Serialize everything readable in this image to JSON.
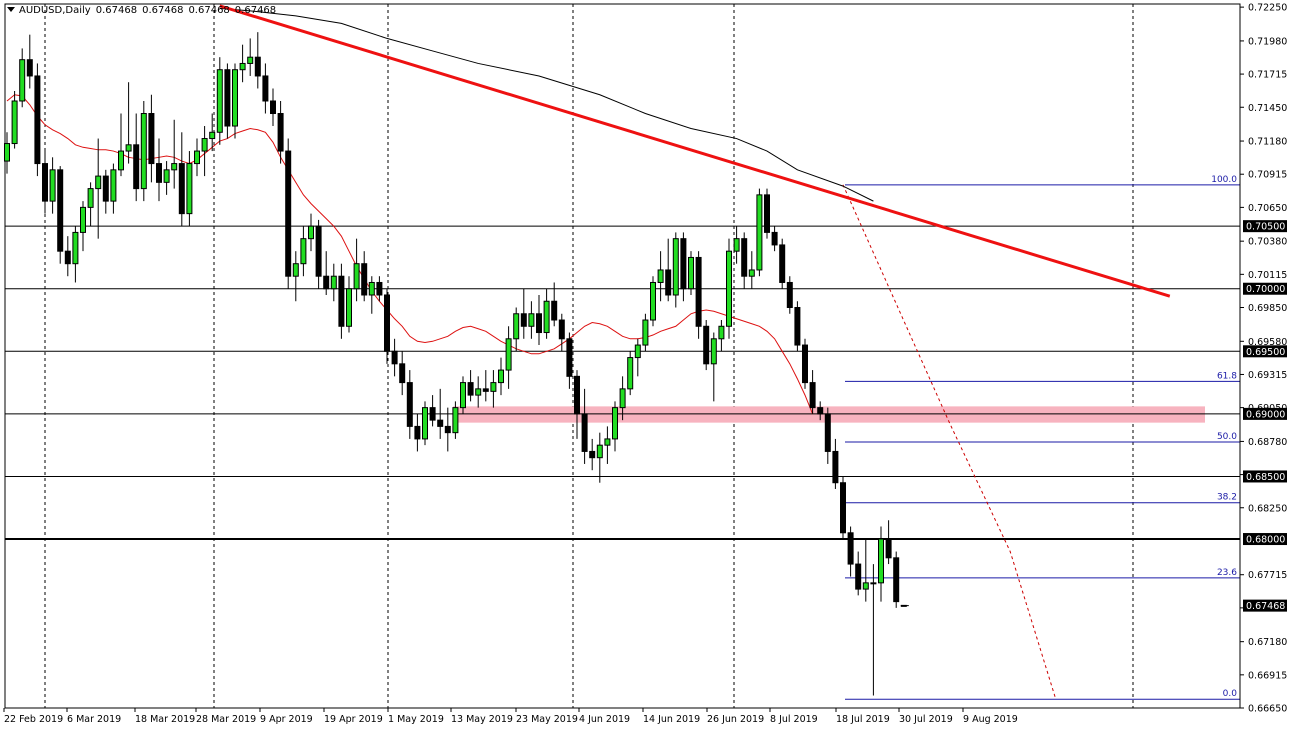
{
  "header": {
    "symbol": "AUDUSD,Daily",
    "ohlc": [
      "0.67468",
      "0.67468",
      "0.67468",
      "0.67468"
    ]
  },
  "chart_data": {
    "type": "candlestick",
    "symbol": "AUDUSD",
    "timeframe": "Daily",
    "ylim": [
      0.6665,
      0.72275
    ],
    "y_ticks": [
      "0.72250",
      "0.71980",
      "0.71715",
      "0.71450",
      "0.71180",
      "0.70915",
      "0.70650",
      "0.70380",
      "0.70115",
      "0.69850",
      "0.69580",
      "0.69315",
      "0.69050",
      "0.68780",
      "0.68515",
      "0.68250",
      "0.67715",
      "0.67450",
      "0.67180",
      "0.66915",
      "0.66650"
    ],
    "x_labels": [
      "22 Feb 2019",
      "6 Mar 2019",
      "18 Mar 2019",
      "28 Mar 2019",
      "9 Apr 2019",
      "19 Apr 2019",
      "1 May 2019",
      "13 May 2019",
      "23 May 2019",
      "4 Jun 2019",
      "14 Jun 2019",
      "26 Jun 2019",
      "8 Jul 2019",
      "18 Jul 2019",
      "30 Jul 2019",
      "9 Aug 2019"
    ],
    "candles": [
      [
        0.7102,
        0.7125,
        0.7092,
        0.7116
      ],
      [
        0.7116,
        0.7158,
        0.7112,
        0.715
      ],
      [
        0.715,
        0.7192,
        0.7145,
        0.7183
      ],
      [
        0.7183,
        0.7203,
        0.716,
        0.717
      ],
      [
        0.717,
        0.718,
        0.709,
        0.71
      ],
      [
        0.71,
        0.711,
        0.706,
        0.707
      ],
      [
        0.707,
        0.7105,
        0.706,
        0.7095
      ],
      [
        0.7095,
        0.7098,
        0.702,
        0.703
      ],
      [
        0.703,
        0.7042,
        0.701,
        0.702
      ],
      [
        0.702,
        0.705,
        0.7005,
        0.7045
      ],
      [
        0.7045,
        0.707,
        0.703,
        0.7065
      ],
      [
        0.7065,
        0.7085,
        0.705,
        0.708
      ],
      [
        0.708,
        0.712,
        0.704,
        0.709
      ],
      [
        0.709,
        0.7095,
        0.706,
        0.707
      ],
      [
        0.707,
        0.71,
        0.706,
        0.7095
      ],
      [
        0.7095,
        0.714,
        0.709,
        0.711
      ],
      [
        0.711,
        0.7165,
        0.71,
        0.7115
      ],
      [
        0.7115,
        0.714,
        0.707,
        0.708
      ],
      [
        0.708,
        0.715,
        0.707,
        0.714
      ],
      [
        0.714,
        0.7155,
        0.7085,
        0.71
      ],
      [
        0.71,
        0.712,
        0.707,
        0.7085
      ],
      [
        0.7085,
        0.7102,
        0.7075,
        0.7095
      ],
      [
        0.7095,
        0.7135,
        0.708,
        0.71
      ],
      [
        0.71,
        0.7125,
        0.705,
        0.706
      ],
      [
        0.706,
        0.711,
        0.705,
        0.71
      ],
      [
        0.71,
        0.712,
        0.709,
        0.711
      ],
      [
        0.711,
        0.713,
        0.709,
        0.712
      ],
      [
        0.712,
        0.714,
        0.711,
        0.7125
      ],
      [
        0.7125,
        0.7185,
        0.7115,
        0.7175
      ],
      [
        0.7175,
        0.718,
        0.712,
        0.713
      ],
      [
        0.713,
        0.718,
        0.712,
        0.7175
      ],
      [
        0.7175,
        0.7195,
        0.7165,
        0.718
      ],
      [
        0.718,
        0.72,
        0.717,
        0.7185
      ],
      [
        0.7185,
        0.7205,
        0.716,
        0.717
      ],
      [
        0.717,
        0.718,
        0.714,
        0.715
      ],
      [
        0.715,
        0.716,
        0.713,
        0.714
      ],
      [
        0.714,
        0.715,
        0.71,
        0.711
      ],
      [
        0.711,
        0.712,
        0.7,
        0.701
      ],
      [
        0.701,
        0.703,
        0.699,
        0.702
      ],
      [
        0.702,
        0.705,
        0.701,
        0.704
      ],
      [
        0.704,
        0.706,
        0.703,
        0.705
      ],
      [
        0.705,
        0.7055,
        0.7,
        0.701
      ],
      [
        0.701,
        0.703,
        0.6995,
        0.7
      ],
      [
        0.7,
        0.702,
        0.699,
        0.701
      ],
      [
        0.701,
        0.702,
        0.696,
        0.697
      ],
      [
        0.697,
        0.701,
        0.6965,
        0.7
      ],
      [
        0.7,
        0.704,
        0.699,
        0.702
      ],
      [
        0.702,
        0.703,
        0.699,
        0.6995
      ],
      [
        0.6995,
        0.701,
        0.698,
        0.7005
      ],
      [
        0.7005,
        0.701,
        0.699,
        0.6995
      ],
      [
        0.6995,
        0.7,
        0.694,
        0.695
      ],
      [
        0.695,
        0.696,
        0.693,
        0.694
      ],
      [
        0.694,
        0.695,
        0.6915,
        0.6925
      ],
      [
        0.6925,
        0.6935,
        0.688,
        0.689
      ],
      [
        0.689,
        0.69,
        0.687,
        0.688
      ],
      [
        0.688,
        0.691,
        0.6875,
        0.6905
      ],
      [
        0.6905,
        0.6915,
        0.689,
        0.6895
      ],
      [
        0.6895,
        0.692,
        0.688,
        0.689
      ],
      [
        0.689,
        0.6905,
        0.687,
        0.6885
      ],
      [
        0.6885,
        0.691,
        0.688,
        0.6905
      ],
      [
        0.6905,
        0.693,
        0.69,
        0.6925
      ],
      [
        0.6925,
        0.6935,
        0.691,
        0.6915
      ],
      [
        0.6915,
        0.693,
        0.6905,
        0.692
      ],
      [
        0.692,
        0.6935,
        0.691,
        0.6918
      ],
      [
        0.6918,
        0.6935,
        0.6905,
        0.6925
      ],
      [
        0.6925,
        0.6945,
        0.6915,
        0.6935
      ],
      [
        0.6935,
        0.697,
        0.692,
        0.696
      ],
      [
        0.696,
        0.6985,
        0.695,
        0.698
      ],
      [
        0.698,
        0.7,
        0.696,
        0.697
      ],
      [
        0.697,
        0.699,
        0.696,
        0.698
      ],
      [
        0.698,
        0.6995,
        0.6955,
        0.6965
      ],
      [
        0.6965,
        0.7,
        0.696,
        0.699
      ],
      [
        0.699,
        0.7005,
        0.697,
        0.6975
      ],
      [
        0.6975,
        0.698,
        0.695,
        0.696
      ],
      [
        0.696,
        0.6965,
        0.692,
        0.693
      ],
      [
        0.693,
        0.6935,
        0.688,
        0.69
      ],
      [
        0.69,
        0.692,
        0.686,
        0.687
      ],
      [
        0.687,
        0.688,
        0.6855,
        0.6865
      ],
      [
        0.6865,
        0.6885,
        0.6845,
        0.6875
      ],
      [
        0.6875,
        0.689,
        0.686,
        0.688
      ],
      [
        0.688,
        0.691,
        0.687,
        0.6905
      ],
      [
        0.6905,
        0.693,
        0.6895,
        0.692
      ],
      [
        0.692,
        0.695,
        0.6915,
        0.6945
      ],
      [
        0.6945,
        0.696,
        0.693,
        0.6955
      ],
      [
        0.6955,
        0.698,
        0.695,
        0.6975
      ],
      [
        0.6975,
        0.701,
        0.697,
        0.7005
      ],
      [
        0.7005,
        0.703,
        0.699,
        0.7015
      ],
      [
        0.7015,
        0.704,
        0.699,
        0.6995
      ],
      [
        0.6995,
        0.7045,
        0.6985,
        0.704
      ],
      [
        0.704,
        0.7045,
        0.699,
        0.7
      ],
      [
        0.7,
        0.703,
        0.6995,
        0.7025
      ],
      [
        0.7025,
        0.703,
        0.696,
        0.697
      ],
      [
        0.697,
        0.6975,
        0.6935,
        0.694
      ],
      [
        0.694,
        0.6965,
        0.691,
        0.696
      ],
      [
        0.696,
        0.6975,
        0.695,
        0.697
      ],
      [
        0.697,
        0.704,
        0.696,
        0.703
      ],
      [
        0.703,
        0.705,
        0.702,
        0.704
      ],
      [
        0.704,
        0.7045,
        0.7,
        0.701
      ],
      [
        0.701,
        0.703,
        0.7,
        0.7015
      ],
      [
        0.7015,
        0.708,
        0.701,
        0.7075
      ],
      [
        0.7075,
        0.708,
        0.704,
        0.7045
      ],
      [
        0.7045,
        0.705,
        0.703,
        0.7035
      ],
      [
        0.7035,
        0.704,
        0.7,
        0.7005
      ],
      [
        0.7005,
        0.701,
        0.698,
        0.6985
      ],
      [
        0.6985,
        0.699,
        0.695,
        0.6955
      ],
      [
        0.6955,
        0.696,
        0.692,
        0.6925
      ],
      [
        0.6925,
        0.6935,
        0.69,
        0.6905
      ],
      [
        0.6905,
        0.691,
        0.6895,
        0.69
      ],
      [
        0.69,
        0.6905,
        0.686,
        0.687
      ],
      [
        0.687,
        0.688,
        0.684,
        0.6845
      ],
      [
        0.6845,
        0.685,
        0.68,
        0.6805
      ],
      [
        0.6805,
        0.681,
        0.677,
        0.678
      ],
      [
        0.678,
        0.679,
        0.6755,
        0.676
      ],
      [
        0.676,
        0.68,
        0.675,
        0.6765
      ],
      [
        0.6765,
        0.678,
        0.6675,
        0.6765
      ],
      [
        0.6765,
        0.681,
        0.675,
        0.68
      ],
      [
        0.68,
        0.6815,
        0.678,
        0.6785
      ],
      [
        0.6785,
        0.679,
        0.6745,
        0.675
      ],
      [
        0.6747,
        0.6747,
        0.6747,
        0.6747
      ]
    ],
    "ma_short": [
      0.715,
      0.7155,
      0.7154,
      0.7147,
      0.7138,
      0.7131,
      0.7127,
      0.7124,
      0.712,
      0.7115,
      0.7113,
      0.7112,
      0.7111,
      0.7111,
      0.711,
      0.7108,
      0.7105,
      0.7104,
      0.7103,
      0.7104,
      0.7105,
      0.7106,
      0.7105,
      0.7102,
      0.71,
      0.7103,
      0.7108,
      0.7113,
      0.7118,
      0.712,
      0.7124,
      0.7126,
      0.7128,
      0.7127,
      0.7125,
      0.7117,
      0.7105,
      0.7095,
      0.7085,
      0.7075,
      0.7068,
      0.7062,
      0.7056,
      0.705,
      0.7042,
      0.703,
      0.7018,
      0.7008,
      0.6998,
      0.699,
      0.6983,
      0.6976,
      0.697,
      0.6962,
      0.6958,
      0.6957,
      0.6958,
      0.696,
      0.6962,
      0.6966,
      0.6969,
      0.697,
      0.6968,
      0.6966,
      0.6962,
      0.6958,
      0.6955,
      0.6952,
      0.695,
      0.6948,
      0.6948,
      0.695,
      0.6952,
      0.6956,
      0.696,
      0.6965,
      0.697,
      0.6973,
      0.6972,
      0.697,
      0.6966,
      0.6962,
      0.696,
      0.696,
      0.6961,
      0.6963,
      0.6966,
      0.6968,
      0.697,
      0.6975,
      0.698,
      0.6982,
      0.6983,
      0.6982,
      0.698,
      0.6978,
      0.6976,
      0.6974,
      0.6972,
      0.697,
      0.6966,
      0.696,
      0.695,
      0.694,
      0.6928,
      0.6915,
      0.69
    ],
    "ma_short_start": 0,
    "ma_long_x": [
      28,
      32,
      38,
      44,
      50,
      56,
      62,
      70,
      78,
      84,
      90,
      96,
      100,
      104,
      110,
      114
    ],
    "ma_long_y": [
      0.7224,
      0.7222,
      0.7218,
      0.7212,
      0.72,
      0.719,
      0.718,
      0.717,
      0.7155,
      0.714,
      0.7128,
      0.712,
      0.711,
      0.7095,
      0.7082,
      0.707
    ],
    "trendline": {
      "x1": 28,
      "y1": 0.7226,
      "x2": 153,
      "y2": 0.6994
    },
    "support_levels": [
      "0.70500",
      "0.70000",
      "0.69500",
      "0.69000",
      "0.68500",
      "0.68000"
    ],
    "highlight_zone": [
      0.6893,
      0.6906
    ],
    "fibonacci": {
      "high": 0.7083,
      "low": 0.6672,
      "levels": [
        {
          "ratio": 1.0,
          "label": "100.0"
        },
        {
          "ratio": 0.618,
          "label": "61.8"
        },
        {
          "ratio": 0.5,
          "label": "50.0"
        },
        {
          "ratio": 0.382,
          "label": "38.2"
        },
        {
          "ratio": 0.236,
          "label": "23.6"
        },
        {
          "ratio": 0.0,
          "label": "0.0"
        }
      ]
    },
    "current_price": "0.67468",
    "colors": {
      "bull": "#22dd22",
      "bear": "#000000",
      "trendline": "#ee1111",
      "ma_short": "#dd1111",
      "ma_long": "#000000",
      "fib": "#1a1aa6",
      "zone": "#f7b3bf",
      "grid": "#000000"
    }
  }
}
